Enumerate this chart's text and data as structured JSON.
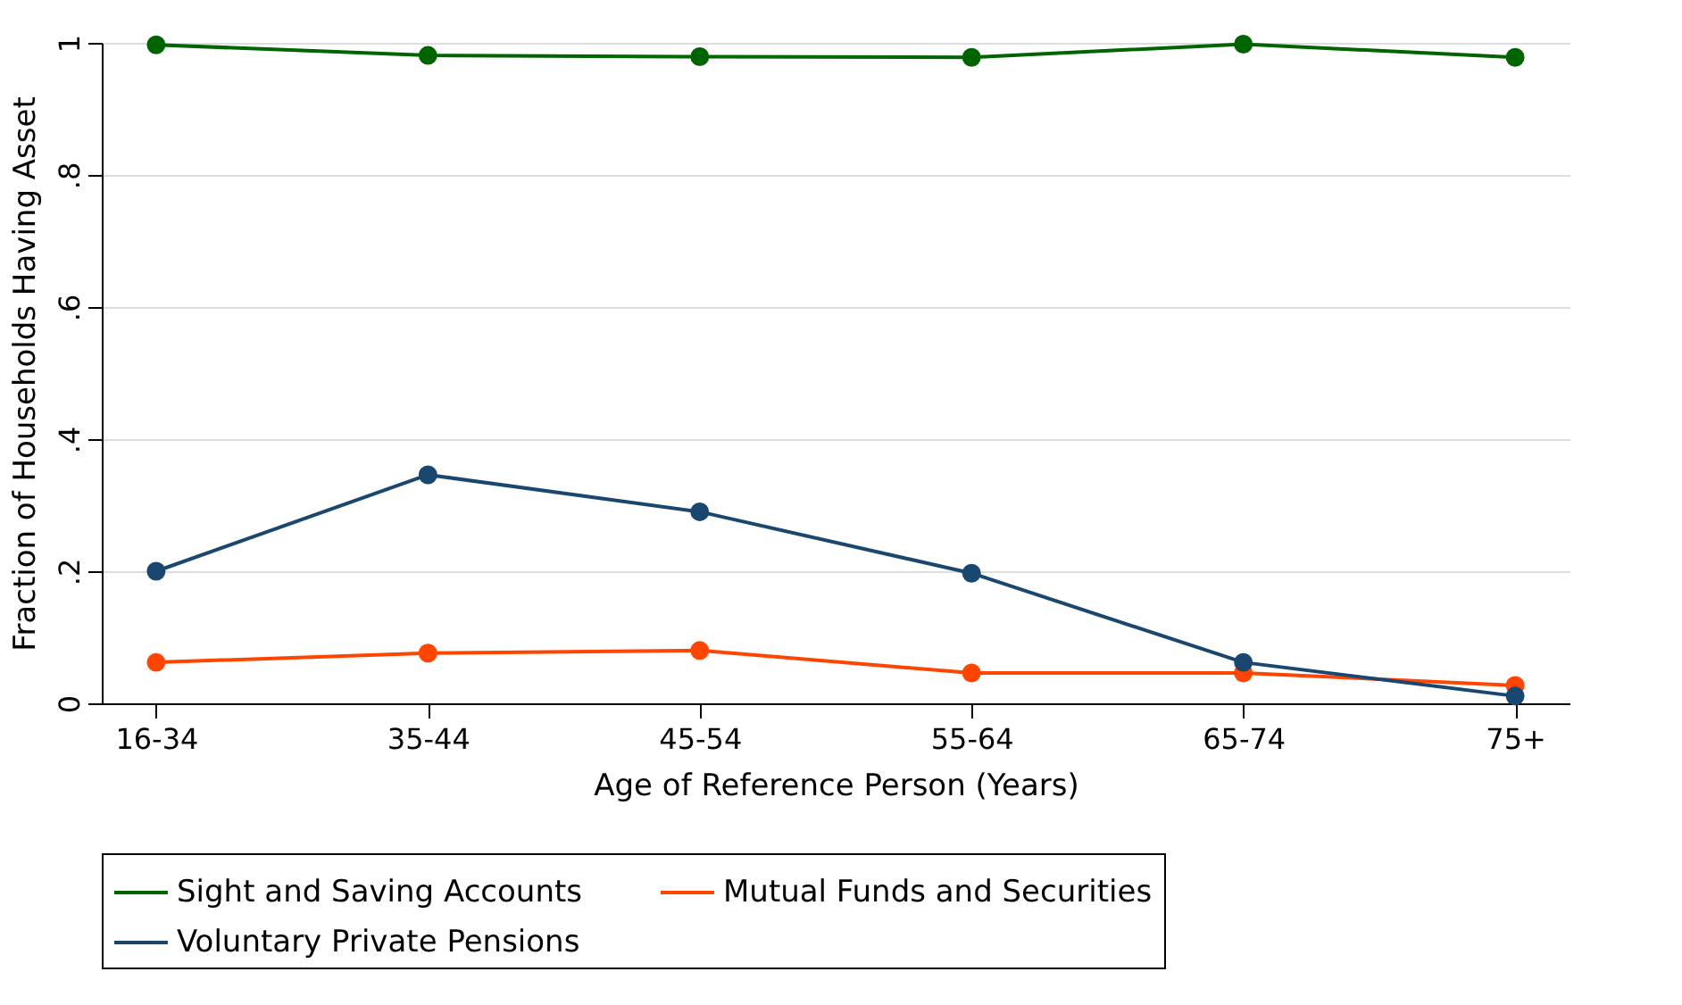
{
  "chart_data": {
    "type": "line",
    "xlabel": "Age of Reference Person (Years)",
    "ylabel": "Fraction of Households Having Asset",
    "categories": [
      "16-34",
      "35-44",
      "45-54",
      "55-64",
      "65-74",
      "75+"
    ],
    "series": [
      {
        "name": "Sight and Saving Accounts",
        "color": "#006400",
        "values": [
          0.997,
          0.981,
          0.979,
          0.978,
          0.998,
          0.978
        ]
      },
      {
        "name": "Mutual Funds and Securities",
        "color": "#ff4500",
        "values": [
          0.062,
          0.076,
          0.08,
          0.046,
          0.046,
          0.027
        ]
      },
      {
        "name": "Voluntary Private Pensions",
        "color": "#1a476f",
        "values": [
          0.2,
          0.346,
          0.29,
          0.197,
          0.062,
          0.011
        ]
      }
    ],
    "ylim": [
      0,
      1
    ],
    "yticks": [
      0,
      {
        "value": 0.2,
        "label": ".2"
      },
      {
        "value": 0.4,
        "label": ".4"
      },
      {
        "value": 0.6,
        "label": ".6"
      },
      {
        "value": 0.8,
        "label": ".8"
      },
      1
    ],
    "grid": "y",
    "legend": "bottom",
    "marker": "circle",
    "line_style": "solid"
  }
}
